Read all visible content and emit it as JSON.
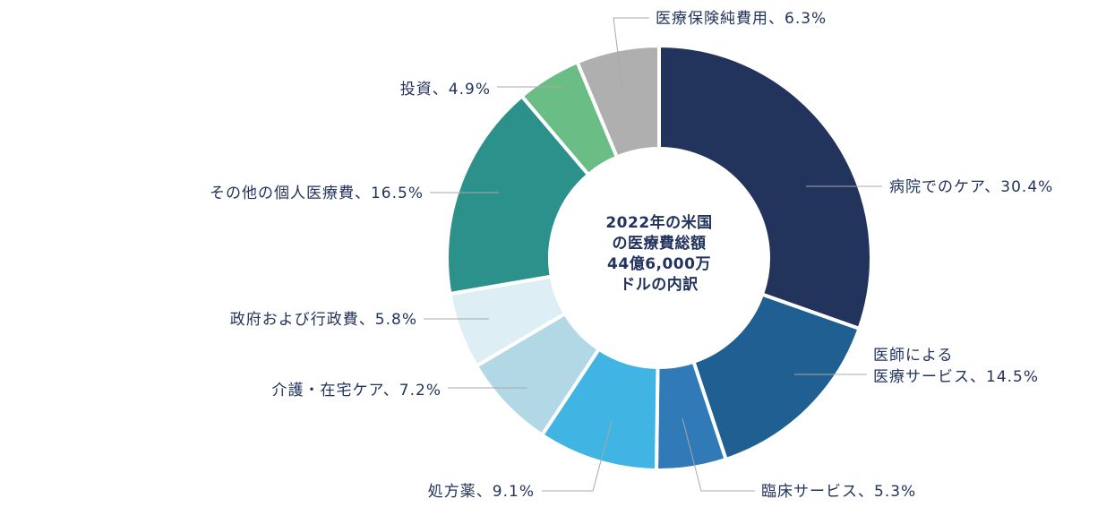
{
  "chart_data": {
    "type": "pie",
    "donut": true,
    "center_label": [
      "2022年の米国",
      "の医療費総額",
      "44億6,000万",
      "ドルの内訳"
    ],
    "unit": "%",
    "slices": [
      {
        "name": "病院でのケア",
        "value": 30.4,
        "label": [
          "病院でのケア、30.4%"
        ],
        "color": "#22335c"
      },
      {
        "name": "医師による医療サービス",
        "value": 14.5,
        "label": [
          "医師による",
          "医療サービス、14.5%"
        ],
        "color": "#1f5f91"
      },
      {
        "name": "臨床サービス",
        "value": 5.3,
        "label": [
          "臨床サービス、5.3%"
        ],
        "color": "#2f7ab7"
      },
      {
        "name": "処方薬",
        "value": 9.1,
        "label": [
          "処方薬、9.1%"
        ],
        "color": "#40b4e3"
      },
      {
        "name": "介護・在宅ケア",
        "value": 7.2,
        "label": [
          "介護・在宅ケア、7.2%"
        ],
        "color": "#b2d7e5"
      },
      {
        "name": "政府および行政費",
        "value": 5.8,
        "label": [
          "政府および行政費、5.8%"
        ],
        "color": "#ddeff5"
      },
      {
        "name": "その他の個人医療費",
        "value": 16.5,
        "label": [
          "その他の個人医療費、16.5%"
        ],
        "color": "#2d918b"
      },
      {
        "name": "投資",
        "value": 4.9,
        "label": [
          "投資、4.9%"
        ],
        "color": "#6abd84"
      },
      {
        "name": "医療保険純費用",
        "value": 6.3,
        "label": [
          "医療保険純費用、6.3%"
        ],
        "color": "#afafaf"
      }
    ]
  }
}
